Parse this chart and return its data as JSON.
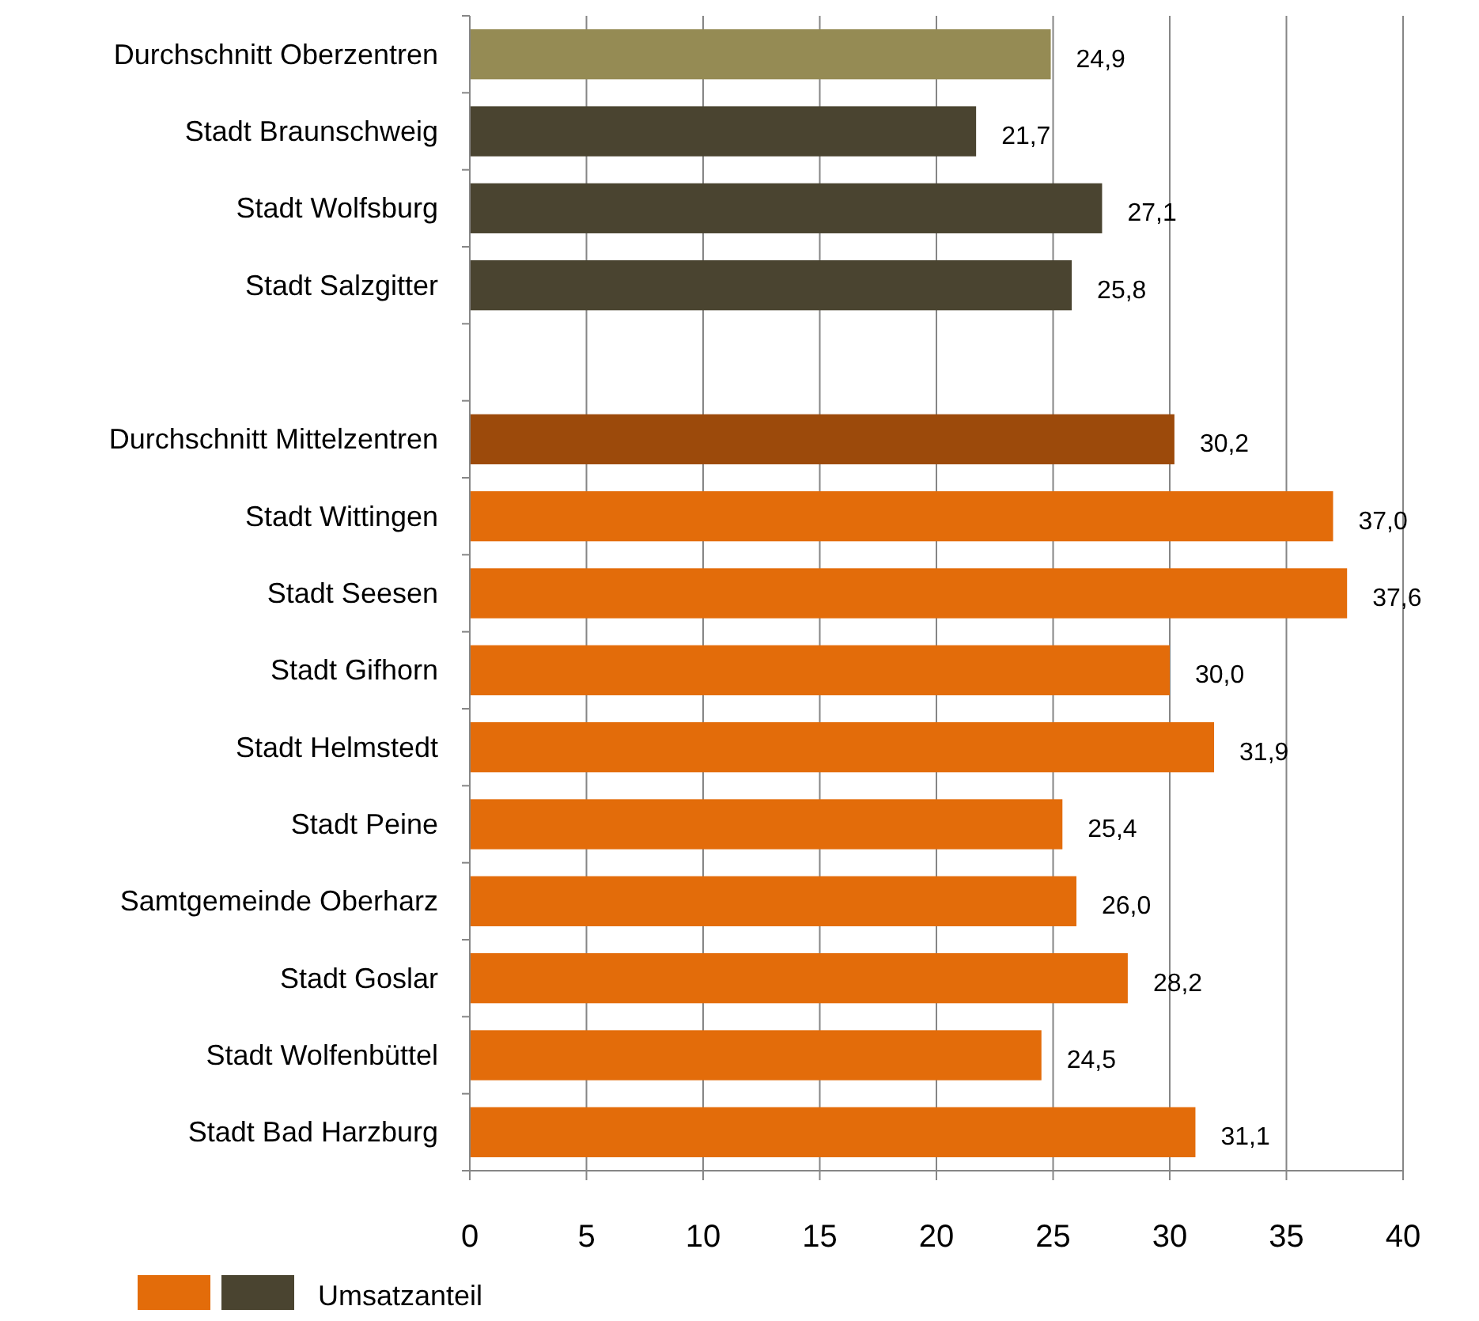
{
  "chart_data": {
    "type": "bar",
    "orientation": "horizontal",
    "categories": [
      "Durchschnitt Oberzentren",
      "Stadt Braunschweig",
      "Stadt Wolfsburg",
      "Stadt Salzgitter",
      null,
      "Durchschnitt Mittelzentren",
      "Stadt Wittingen",
      "Stadt Seesen",
      "Stadt Gifhorn",
      "Stadt Helmstedt",
      "Stadt Peine",
      "Samtgemeinde Oberharz",
      "Stadt Goslar",
      "Stadt Wolfenbüttel",
      "Stadt Bad Harzburg"
    ],
    "series": [
      {
        "name": "Umsatzanteil",
        "values": [
          24.9,
          21.7,
          27.1,
          25.8,
          null,
          30.2,
          37.0,
          37.6,
          30.0,
          31.9,
          25.4,
          26.0,
          28.2,
          24.5,
          31.1
        ],
        "colors": [
          "#958b54",
          "#4a4430",
          "#4a4430",
          "#4a4430",
          null,
          "#9c4a0b",
          "#e36c0a",
          "#e36c0a",
          "#e36c0a",
          "#e36c0a",
          "#e36c0a",
          "#e36c0a",
          "#e36c0a",
          "#e36c0a",
          "#e36c0a"
        ],
        "value_labels": [
          "24,9",
          "21,7",
          "27,1",
          "25,8",
          null,
          "30,2",
          "37,0",
          "37,6",
          "30,0",
          "31,9",
          "25,4",
          "26,0",
          "28,2",
          "24,5",
          "31,1"
        ]
      }
    ],
    "xlim": [
      0,
      40
    ],
    "xticks": [
      0,
      5,
      10,
      15,
      20,
      25,
      30,
      35,
      40
    ],
    "grid": "x",
    "legend": "bottom left"
  }
}
